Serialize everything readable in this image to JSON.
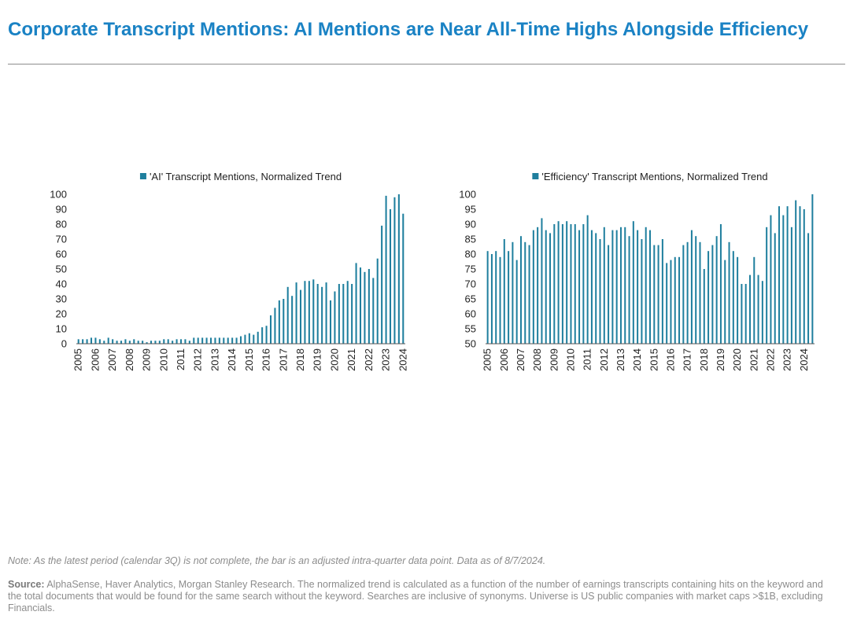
{
  "title": "Corporate Transcript Mentions: AI Mentions are Near All-Time Highs Alongside Efficiency",
  "note": "Note: As the latest period (calendar 3Q) is not complete, the bar is an adjusted intra-quarter data point. Data as of 8/7/2024.",
  "source_label": "Source:",
  "source_text": "AlphaSense, Haver Analytics, Morgan Stanley Research. The normalized trend is calculated as a function of the number of earnings transcripts containing hits on the keyword and the total documents that would be found for the same search without the keyword. Searches are inclusive of synonyms.  Universe is US public companies with market caps >$1B, excluding Financials.",
  "colors": {
    "title": "#1a82c4",
    "bar": "#1f7f9e",
    "text": "#222222",
    "note": "#8c8c8c"
  },
  "chart_data": [
    {
      "type": "bar",
      "legend": "'AI' Transcript Mentions, Normalized Trend",
      "legend_position": "top-center",
      "ylim": [
        0,
        100
      ],
      "yticks": [
        0,
        10,
        20,
        30,
        40,
        50,
        60,
        70,
        80,
        90,
        100
      ],
      "x_start_year": 2005,
      "xticks": [
        "2005",
        "2006",
        "2007",
        "2008",
        "2009",
        "2010",
        "2011",
        "2012",
        "2013",
        "2014",
        "2015",
        "2016",
        "2017",
        "2018",
        "2019",
        "2020",
        "2021",
        "2022",
        "2023",
        "2024"
      ],
      "values": [
        3,
        3,
        3,
        4,
        4,
        3,
        2,
        4,
        3,
        2,
        2,
        3,
        2,
        3,
        2,
        2,
        1,
        2,
        2,
        2,
        3,
        3,
        2,
        3,
        3,
        3,
        2,
        4,
        4,
        4,
        4,
        4,
        4,
        4,
        4,
        4,
        4,
        4,
        5,
        6,
        7,
        6,
        8,
        11,
        12,
        19,
        24,
        29,
        30,
        38,
        32,
        41,
        36,
        42,
        42,
        43,
        40,
        38,
        41,
        29,
        35,
        40,
        40,
        42,
        40,
        54,
        51,
        48,
        50,
        44,
        57,
        79,
        99,
        90,
        98,
        100,
        87
      ]
    },
    {
      "type": "bar",
      "legend": "'Efficiency' Transcript Mentions, Normalized Trend",
      "legend_position": "top-center",
      "ylim": [
        50,
        100
      ],
      "yticks": [
        50,
        55,
        60,
        65,
        70,
        75,
        80,
        85,
        90,
        95,
        100
      ],
      "x_start_year": 2005,
      "xticks": [
        "2005",
        "2006",
        "2007",
        "2008",
        "2009",
        "2010",
        "2011",
        "2012",
        "2013",
        "2014",
        "2015",
        "2016",
        "2017",
        "2018",
        "2019",
        "2020",
        "2021",
        "2022",
        "2023",
        "2024"
      ],
      "values": [
        81,
        80,
        81,
        79,
        85,
        81,
        84,
        78,
        86,
        84,
        83,
        88,
        89,
        92,
        88,
        87,
        90,
        91,
        90,
        91,
        90,
        90,
        88,
        90,
        93,
        88,
        87,
        85,
        89,
        83,
        88,
        88,
        89,
        89,
        86,
        91,
        88,
        85,
        89,
        88,
        83,
        83,
        85,
        77,
        78,
        79,
        79,
        83,
        84,
        88,
        86,
        84,
        75,
        81,
        83,
        86,
        90,
        78,
        84,
        81,
        79,
        70,
        70,
        73,
        79,
        73,
        71,
        89,
        93,
        87,
        96,
        93,
        96,
        89,
        98,
        96,
        95,
        87,
        100
      ]
    }
  ]
}
